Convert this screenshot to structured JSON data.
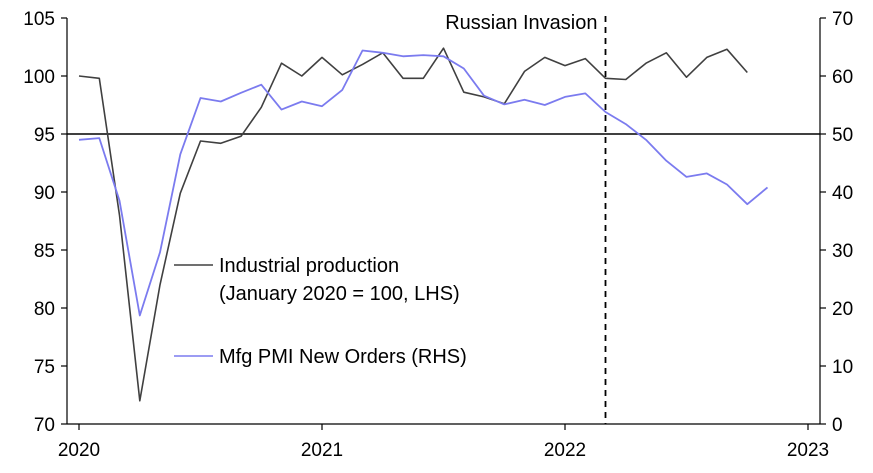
{
  "chart_data": {
    "type": "line",
    "title": "",
    "xlabel": "",
    "x_ticks": [
      "2020",
      "2021",
      "2022",
      "2023"
    ],
    "x_range": [
      "2020-01",
      "2023-01"
    ],
    "left_axis": {
      "ylim": [
        70,
        105
      ],
      "ticks": [
        "70",
        "75",
        "80",
        "85",
        "90",
        "95",
        "100",
        "105"
      ]
    },
    "right_axis": {
      "ylim": [
        0,
        70
      ],
      "ticks": [
        "0",
        "10",
        "20",
        "30",
        "40",
        "50",
        "60",
        "70"
      ]
    },
    "reference_line": {
      "axis": "right",
      "value": 50
    },
    "annotation": {
      "text": "Russian Invasion",
      "x": "2022-03"
    },
    "series": [
      {
        "name": "Industrial production",
        "name_line2": "(January 2020 = 100, LHS)",
        "axis": "left",
        "color": "#404040",
        "points": [
          [
            "2020-01",
            100.0
          ],
          [
            "2020-02",
            99.8
          ],
          [
            "2020-03",
            88.0
          ],
          [
            "2020-04",
            72.0
          ],
          [
            "2020-05",
            82.0
          ],
          [
            "2020-06",
            89.9
          ],
          [
            "2020-07",
            94.4
          ],
          [
            "2020-08",
            94.2
          ],
          [
            "2020-09",
            94.8
          ],
          [
            "2020-10",
            97.3
          ],
          [
            "2020-11",
            101.1
          ],
          [
            "2020-12",
            100.0
          ],
          [
            "2021-01",
            101.6
          ],
          [
            "2021-02",
            100.1
          ],
          [
            "2021-03",
            101.0
          ],
          [
            "2021-04",
            102.0
          ],
          [
            "2021-05",
            99.8
          ],
          [
            "2021-06",
            99.8
          ],
          [
            "2021-07",
            102.4
          ],
          [
            "2021-08",
            98.6
          ],
          [
            "2021-09",
            98.2
          ],
          [
            "2021-10",
            97.6
          ],
          [
            "2021-11",
            100.4
          ],
          [
            "2021-12",
            101.6
          ],
          [
            "2022-01",
            100.9
          ],
          [
            "2022-02",
            101.5
          ],
          [
            "2022-03",
            99.8
          ],
          [
            "2022-04",
            99.7
          ],
          [
            "2022-05",
            101.1
          ],
          [
            "2022-06",
            102.0
          ],
          [
            "2022-07",
            99.9
          ],
          [
            "2022-08",
            101.6
          ],
          [
            "2022-09",
            102.3
          ],
          [
            "2022-10",
            100.3
          ]
        ]
      },
      {
        "name": "Mfg PMI New Orders (RHS)",
        "axis": "right",
        "color": "#7b7bef",
        "points": [
          [
            "2020-01",
            49.0
          ],
          [
            "2020-02",
            49.3
          ],
          [
            "2020-03",
            38.5
          ],
          [
            "2020-04",
            18.7
          ],
          [
            "2020-05",
            29.6
          ],
          [
            "2020-06",
            46.5
          ],
          [
            "2020-07",
            56.2
          ],
          [
            "2020-08",
            55.6
          ],
          [
            "2020-09",
            57.1
          ],
          [
            "2020-10",
            58.5
          ],
          [
            "2020-11",
            54.2
          ],
          [
            "2020-12",
            55.6
          ],
          [
            "2021-01",
            54.8
          ],
          [
            "2021-02",
            57.6
          ],
          [
            "2021-03",
            64.4
          ],
          [
            "2021-04",
            64.0
          ],
          [
            "2021-05",
            63.4
          ],
          [
            "2021-06",
            63.6
          ],
          [
            "2021-07",
            63.4
          ],
          [
            "2021-08",
            61.3
          ],
          [
            "2021-09",
            56.6
          ],
          [
            "2021-10",
            55.1
          ],
          [
            "2021-11",
            55.9
          ],
          [
            "2021-12",
            55.0
          ],
          [
            "2022-01",
            56.4
          ],
          [
            "2022-02",
            57.0
          ],
          [
            "2022-03",
            53.8
          ],
          [
            "2022-04",
            51.7
          ],
          [
            "2022-05",
            49.0
          ],
          [
            "2022-06",
            45.4
          ],
          [
            "2022-07",
            42.6
          ],
          [
            "2022-08",
            43.2
          ],
          [
            "2022-09",
            41.3
          ],
          [
            "2022-10",
            37.9
          ],
          [
            "2022-11",
            40.8
          ]
        ]
      }
    ]
  }
}
